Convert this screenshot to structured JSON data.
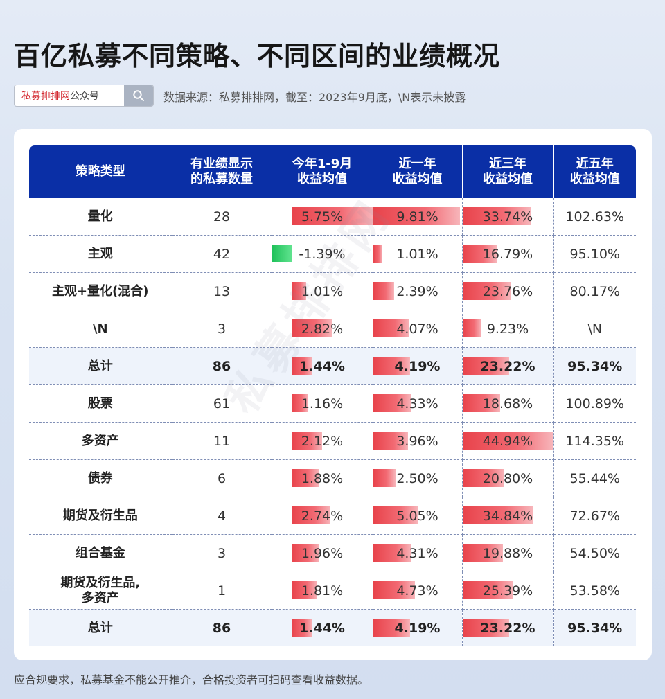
{
  "title": "百亿私募不同策略、不同区间的业绩概况",
  "search": {
    "brand": "私募排排网",
    "suffix": "公众号",
    "icon": "search-icon"
  },
  "source": "数据来源：私募排排网，截至：2023年9月底，\\N表示未披露",
  "watermark": "私募排排网",
  "footer": "应合规要求，私募基金不能公开推介，合格投资者可扫码查看收益数据。",
  "colors": {
    "header": "#0a2fa6",
    "positive_bar": "#e8434b",
    "negative_bar": "#1fc15a"
  },
  "chart_data": {
    "type": "table",
    "columns": [
      "策略类型",
      "有业绩显示的私募数量",
      "今年1-9月收益均值",
      "近一年收益均值",
      "近三年收益均值",
      "近五年收益均值"
    ],
    "header_lines": [
      [
        "策略类型"
      ],
      [
        "有业绩显示",
        "的私募数量"
      ],
      [
        "今年1-9月",
        "收益均值"
      ],
      [
        "近一年",
        "收益均值"
      ],
      [
        "近三年",
        "收益均值"
      ],
      [
        "近五年",
        "收益均值"
      ]
    ],
    "rows": [
      {
        "label": "量化",
        "label_lines": [
          "量化"
        ],
        "count": "28",
        "ytd": "5.75%",
        "y1": "9.81%",
        "y3": "33.74%",
        "y5": "102.63%",
        "total": false
      },
      {
        "label": "主观",
        "label_lines": [
          "主观"
        ],
        "count": "42",
        "ytd": "-1.39%",
        "y1": "1.01%",
        "y3": "16.79%",
        "y5": "95.10%",
        "total": false
      },
      {
        "label": "主观+量化(混合)",
        "label_lines": [
          "主观+量化(混合)"
        ],
        "count": "13",
        "ytd": "1.01%",
        "y1": "2.39%",
        "y3": "23.76%",
        "y5": "80.17%",
        "total": false
      },
      {
        "label": "\\N",
        "label_lines": [
          "\\N"
        ],
        "count": "3",
        "ytd": "2.82%",
        "y1": "4.07%",
        "y3": "9.23%",
        "y5": "\\N",
        "total": false
      },
      {
        "label": "总计",
        "label_lines": [
          "总计"
        ],
        "count": "86",
        "ytd": "1.44%",
        "y1": "4.19%",
        "y3": "23.22%",
        "y5": "95.34%",
        "total": true
      },
      {
        "label": "股票",
        "label_lines": [
          "股票"
        ],
        "count": "61",
        "ytd": "1.16%",
        "y1": "4.33%",
        "y3": "18.68%",
        "y5": "100.89%",
        "total": false
      },
      {
        "label": "多资产",
        "label_lines": [
          "多资产"
        ],
        "count": "11",
        "ytd": "2.12%",
        "y1": "3.96%",
        "y3": "44.94%",
        "y5": "114.35%",
        "total": false
      },
      {
        "label": "债券",
        "label_lines": [
          "债券"
        ],
        "count": "6",
        "ytd": "1.88%",
        "y1": "2.50%",
        "y3": "20.80%",
        "y5": "55.44%",
        "total": false
      },
      {
        "label": "期货及衍生品",
        "label_lines": [
          "期货及衍生品"
        ],
        "count": "4",
        "ytd": "2.74%",
        "y1": "5.05%",
        "y3": "34.84%",
        "y5": "72.67%",
        "total": false
      },
      {
        "label": "组合基金",
        "label_lines": [
          "组合基金"
        ],
        "count": "3",
        "ytd": "1.96%",
        "y1": "4.31%",
        "y3": "19.88%",
        "y5": "54.50%",
        "total": false
      },
      {
        "label": "期货及衍生品,多资产",
        "label_lines": [
          "期货及衍生品,",
          "多资产"
        ],
        "count": "1",
        "ytd": "1.81%",
        "y1": "4.73%",
        "y3": "25.39%",
        "y5": "53.58%",
        "total": false
      },
      {
        "label": "总计",
        "label_lines": [
          "总计"
        ],
        "count": "86",
        "ytd": "1.44%",
        "y1": "4.19%",
        "y3": "23.22%",
        "y5": "95.34%",
        "total": true
      }
    ]
  }
}
